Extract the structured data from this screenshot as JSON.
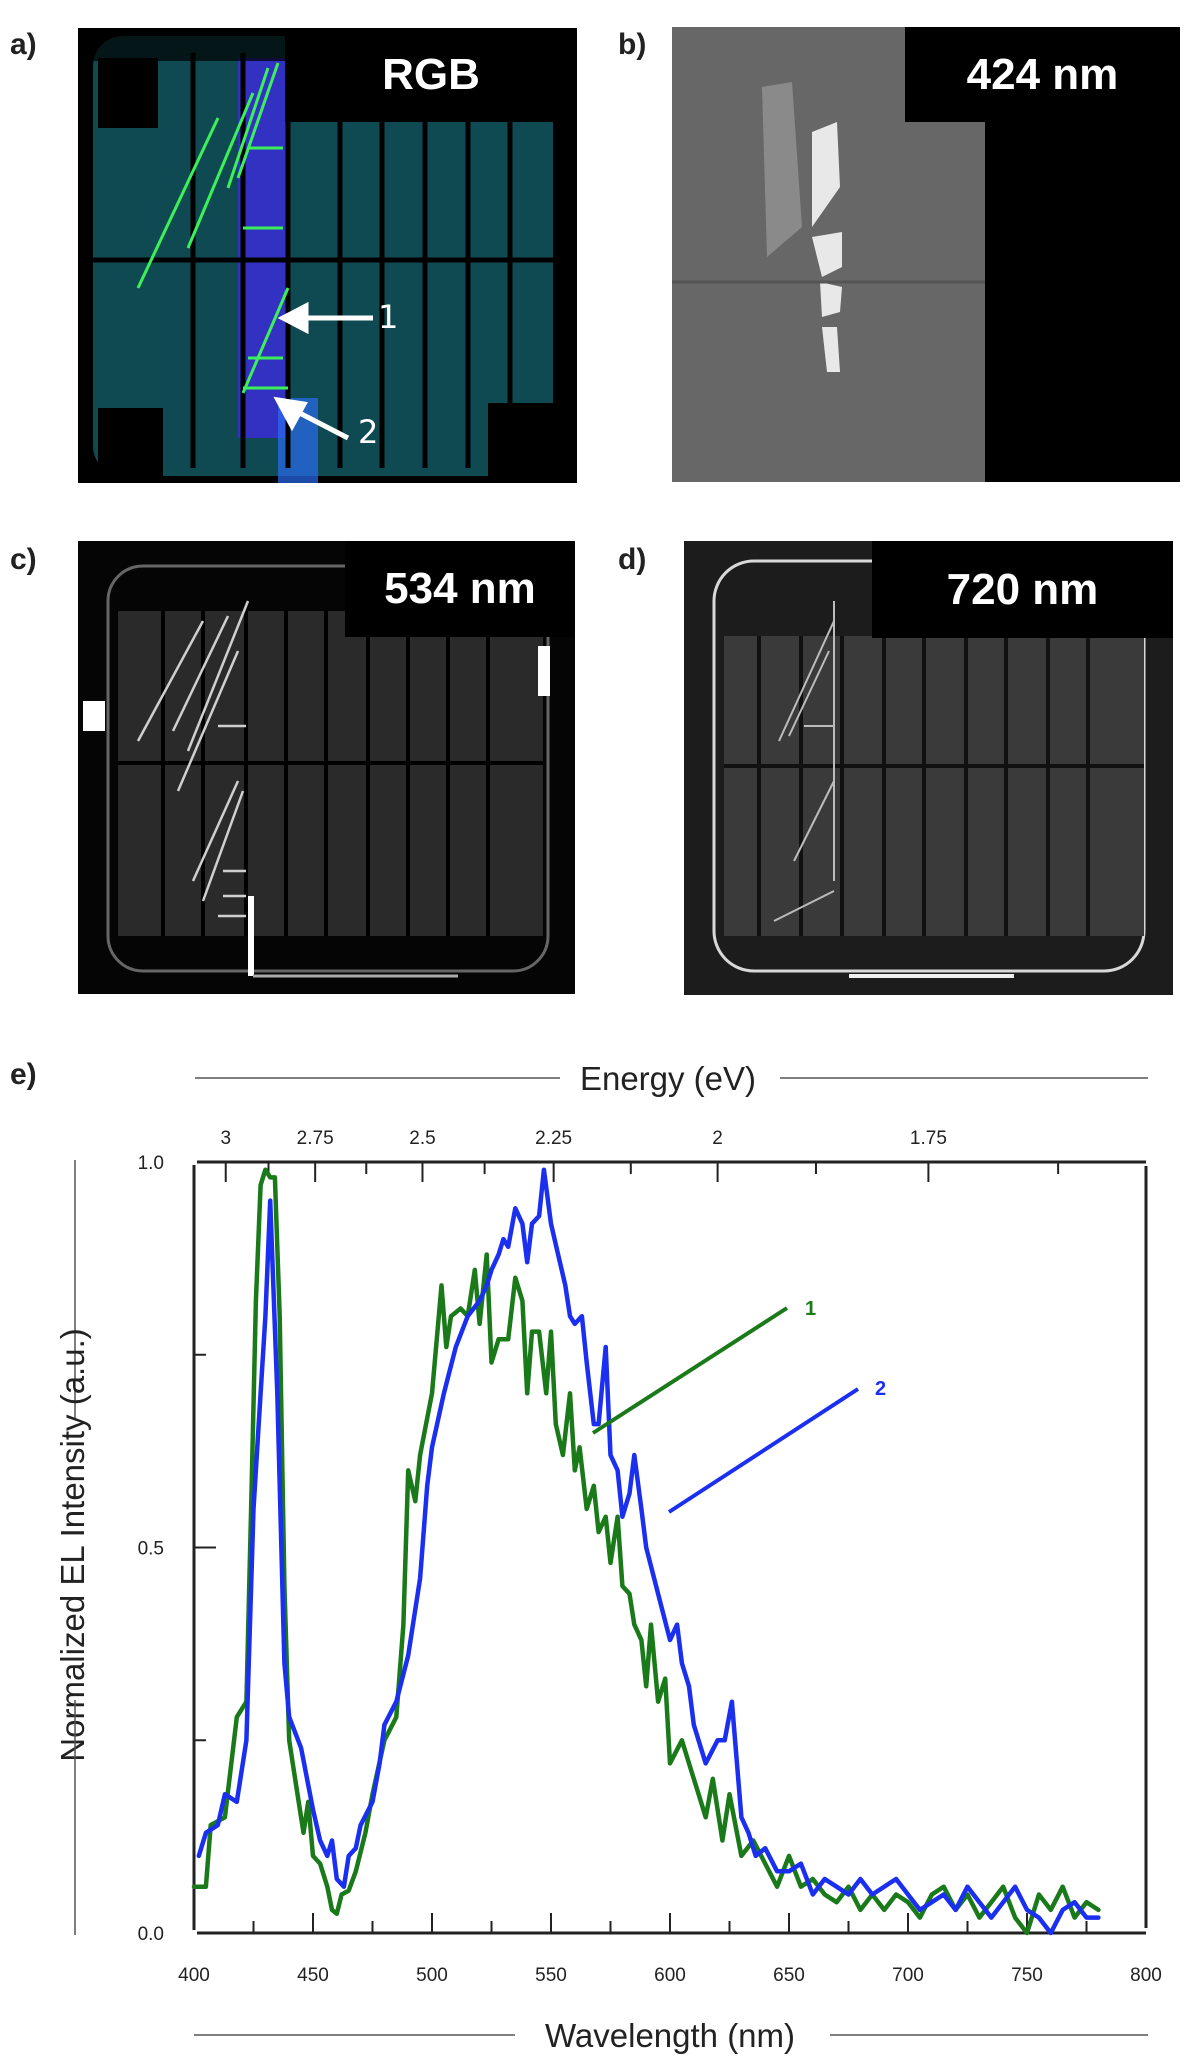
{
  "figure": {
    "panels": [
      {
        "id": "a",
        "label": "a)",
        "tag": "RGB",
        "kind": "rgb-photo",
        "annotations": [
          {
            "text": "1"
          },
          {
            "text": "2"
          }
        ]
      },
      {
        "id": "b",
        "label": "b)",
        "tag": "424 nm",
        "kind": "grayscale-photo"
      },
      {
        "id": "c",
        "label": "c)",
        "tag": "534 nm",
        "kind": "grayscale-photo"
      },
      {
        "id": "d",
        "label": "d)",
        "tag": "720 nm",
        "kind": "grayscale-photo"
      }
    ],
    "chart_panel_label": "e)"
  },
  "colors": {
    "series1": "#1a7a1a",
    "series2": "#1b2ff0",
    "axis": "#222222",
    "rgb_bg": "#0f4a52",
    "rgb_blue_band": "#3a2dd6",
    "rgb_green_lines": "#3cf05a"
  },
  "chart_data": {
    "type": "line",
    "title": "",
    "xlabel": "Wavelength (nm)",
    "ylabel": "Normalized EL Intensity (a.u.)",
    "top_xlabel": "Energy (eV)",
    "xlim": [
      400,
      800
    ],
    "ylim": [
      0.0,
      1.0
    ],
    "x_ticks": [
      400,
      450,
      500,
      550,
      600,
      650,
      700,
      750,
      800
    ],
    "x_tick_labels": [
      "400",
      "450",
      "500",
      "550",
      "600",
      "650",
      "700",
      "750",
      "800"
    ],
    "y_ticks": [
      0.0,
      0.25,
      0.5,
      0.75,
      1.0
    ],
    "y_tick_labels": [
      "0.0",
      "",
      "0.5",
      "",
      "1.0"
    ],
    "top_ticks_eV": [
      3,
      2.75,
      2.5,
      2.25,
      2,
      1.75
    ],
    "top_tick_labels": [
      "3",
      "2.75",
      "2.5",
      "2.25",
      "2",
      "1.75"
    ],
    "grid": false,
    "legend": {
      "position": "inline-annotations",
      "entries": [
        "1",
        "2"
      ]
    },
    "series": [
      {
        "name": "1",
        "color": "#1a7a1a",
        "x": [
          400,
          405,
          407,
          413,
          418,
          422,
          424,
          426,
          428,
          430,
          432,
          434,
          436,
          438,
          440,
          443,
          446,
          448,
          450,
          453,
          456,
          458,
          460,
          462,
          465,
          468,
          472,
          475,
          480,
          485,
          488,
          490,
          493,
          495,
          500,
          504,
          506,
          508,
          512,
          515,
          518,
          520,
          523,
          525,
          528,
          532,
          535,
          538,
          540,
          542,
          545,
          548,
          550,
          552,
          555,
          558,
          560,
          562,
          565,
          568,
          570,
          573,
          575,
          578,
          580,
          583,
          585,
          588,
          590,
          592,
          595,
          598,
          600,
          605,
          608,
          612,
          615,
          618,
          622,
          625,
          630,
          635,
          640,
          645,
          650,
          655,
          660,
          665,
          670,
          675,
          680,
          685,
          690,
          695,
          700,
          705,
          710,
          715,
          720,
          725,
          730,
          735,
          740,
          745,
          750,
          755,
          760,
          765,
          770,
          775,
          780
        ],
        "values": [
          0.06,
          0.06,
          0.14,
          0.15,
          0.28,
          0.3,
          0.55,
          0.82,
          0.97,
          0.99,
          0.98,
          0.98,
          0.8,
          0.45,
          0.25,
          0.19,
          0.13,
          0.17,
          0.1,
          0.09,
          0.06,
          0.03,
          0.025,
          0.05,
          0.055,
          0.08,
          0.13,
          0.18,
          0.25,
          0.28,
          0.4,
          0.6,
          0.56,
          0.62,
          0.7,
          0.84,
          0.76,
          0.8,
          0.81,
          0.8,
          0.86,
          0.79,
          0.88,
          0.74,
          0.77,
          0.77,
          0.85,
          0.82,
          0.7,
          0.78,
          0.78,
          0.7,
          0.78,
          0.66,
          0.62,
          0.7,
          0.6,
          0.63,
          0.55,
          0.58,
          0.52,
          0.54,
          0.48,
          0.54,
          0.45,
          0.44,
          0.4,
          0.38,
          0.32,
          0.4,
          0.3,
          0.33,
          0.22,
          0.25,
          0.22,
          0.18,
          0.15,
          0.2,
          0.12,
          0.18,
          0.1,
          0.12,
          0.09,
          0.06,
          0.1,
          0.06,
          0.07,
          0.05,
          0.04,
          0.06,
          0.03,
          0.05,
          0.03,
          0.05,
          0.04,
          0.02,
          0.05,
          0.06,
          0.03,
          0.05,
          0.02,
          0.04,
          0.06,
          0.02,
          0.0,
          0.05,
          0.03,
          0.06,
          0.02,
          0.04,
          0.03
        ]
      },
      {
        "name": "2",
        "color": "#1b2ff0",
        "x": [
          402,
          405,
          410,
          413,
          418,
          422,
          425,
          428,
          430,
          432,
          435,
          438,
          440,
          445,
          450,
          453,
          456,
          458,
          460,
          463,
          465,
          468,
          470,
          475,
          478,
          480,
          485,
          490,
          495,
          498,
          500,
          505,
          510,
          515,
          520,
          523,
          525,
          528,
          530,
          532,
          535,
          538,
          540,
          542,
          545,
          547,
          550,
          553,
          556,
          558,
          560,
          563,
          565,
          568,
          570,
          573,
          575,
          578,
          580,
          583,
          585,
          588,
          590,
          595,
          600,
          603,
          605,
          608,
          610,
          615,
          620,
          623,
          626,
          630,
          633,
          636,
          640,
          645,
          650,
          655,
          660,
          665,
          670,
          675,
          680,
          685,
          690,
          695,
          700,
          705,
          710,
          715,
          720,
          725,
          730,
          735,
          740,
          745,
          750,
          755,
          760,
          765,
          770,
          775,
          780
        ],
        "values": [
          0.1,
          0.13,
          0.14,
          0.18,
          0.17,
          0.25,
          0.55,
          0.7,
          0.8,
          0.95,
          0.7,
          0.35,
          0.28,
          0.24,
          0.16,
          0.12,
          0.1,
          0.12,
          0.07,
          0.06,
          0.1,
          0.11,
          0.14,
          0.17,
          0.22,
          0.27,
          0.3,
          0.36,
          0.46,
          0.58,
          0.63,
          0.7,
          0.76,
          0.8,
          0.82,
          0.84,
          0.86,
          0.88,
          0.9,
          0.89,
          0.94,
          0.92,
          0.87,
          0.92,
          0.93,
          0.99,
          0.92,
          0.88,
          0.84,
          0.8,
          0.79,
          0.8,
          0.74,
          0.66,
          0.66,
          0.76,
          0.62,
          0.6,
          0.54,
          0.57,
          0.62,
          0.55,
          0.5,
          0.44,
          0.38,
          0.4,
          0.35,
          0.32,
          0.27,
          0.22,
          0.25,
          0.25,
          0.3,
          0.15,
          0.13,
          0.1,
          0.11,
          0.08,
          0.08,
          0.09,
          0.05,
          0.07,
          0.06,
          0.05,
          0.07,
          0.05,
          0.06,
          0.07,
          0.05,
          0.03,
          0.04,
          0.05,
          0.03,
          0.06,
          0.04,
          0.02,
          0.04,
          0.06,
          0.03,
          0.02,
          0.0,
          0.03,
          0.04,
          0.02,
          0.02
        ]
      }
    ],
    "annotations": [
      {
        "text": "1",
        "series": "1",
        "color": "#1a7a1a"
      },
      {
        "text": "2",
        "series": "2",
        "color": "#1b2ff0"
      }
    ]
  }
}
